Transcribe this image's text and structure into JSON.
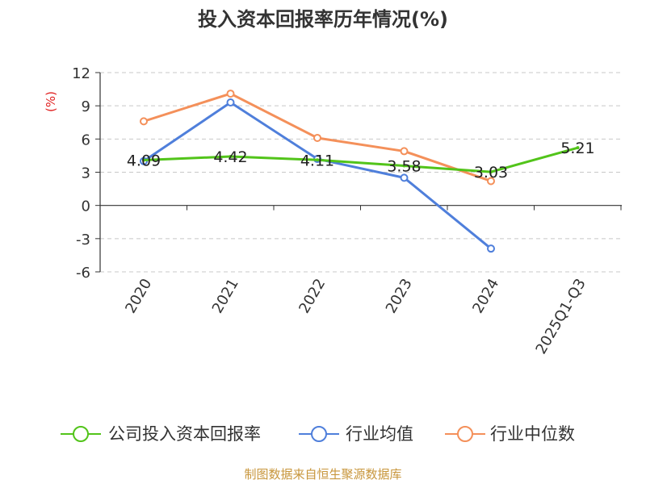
{
  "chart_data": {
    "type": "line",
    "title": "投入资本回报率历年情况(%)",
    "ylabel": "(%)",
    "xlabel": "",
    "categories": [
      "2020",
      "2021",
      "2022",
      "2023",
      "2024",
      "2025Q1-Q3"
    ],
    "ylim": [
      -6,
      12
    ],
    "yticks": [
      12,
      9,
      6,
      3,
      0,
      -3,
      -6
    ],
    "grid": true,
    "legend_position": "bottom",
    "series": [
      {
        "name": "公司投入资本回报率",
        "color": "#52c41a",
        "values": [
          4.09,
          4.42,
          4.11,
          3.58,
          3.03,
          5.21
        ],
        "labels": [
          "4.09",
          "4.42",
          "4.11",
          "3.58",
          "3.03",
          "5.21"
        ]
      },
      {
        "name": "行业均值",
        "color": "#4f7fdb",
        "values": [
          4.0,
          9.3,
          4.2,
          2.5,
          -3.9,
          null
        ]
      },
      {
        "name": "行业中位数",
        "color": "#f4905a",
        "values": [
          7.6,
          10.1,
          6.1,
          4.9,
          2.2,
          null
        ]
      }
    ],
    "source": "制图数据来自恒生聚源数据库"
  }
}
